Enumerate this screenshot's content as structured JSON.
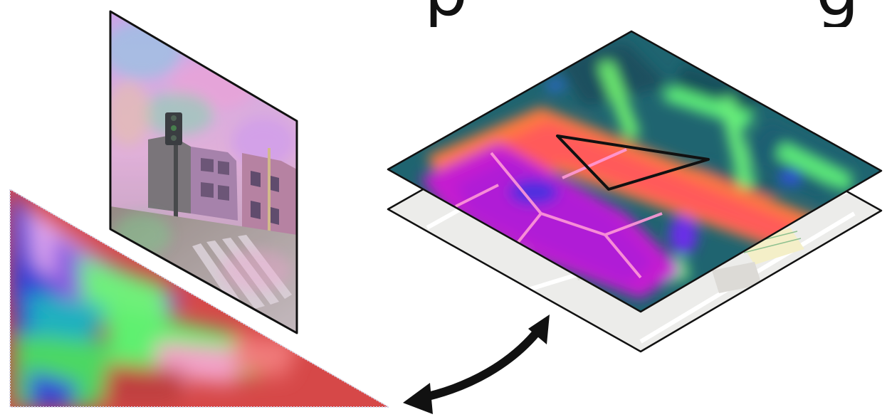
{
  "title_fragments": [
    "p",
    "g"
  ],
  "figure": {
    "panels": [
      "street-view-image-feature-map",
      "birds-eye-view-projection",
      "aerial-map-feature-layer",
      "base-map-tile-layer"
    ],
    "colors": {
      "outline": "#111111",
      "magenta": "#d21ad6",
      "pink": "#ff4fa6",
      "red": "#e04040",
      "orange": "#ff8a3c",
      "green": "#5cf27a",
      "teal": "#1f7a7a",
      "blue": "#2a3fd8",
      "lavender": "#c9a8f0",
      "map_bg": "#ececea"
    }
  }
}
